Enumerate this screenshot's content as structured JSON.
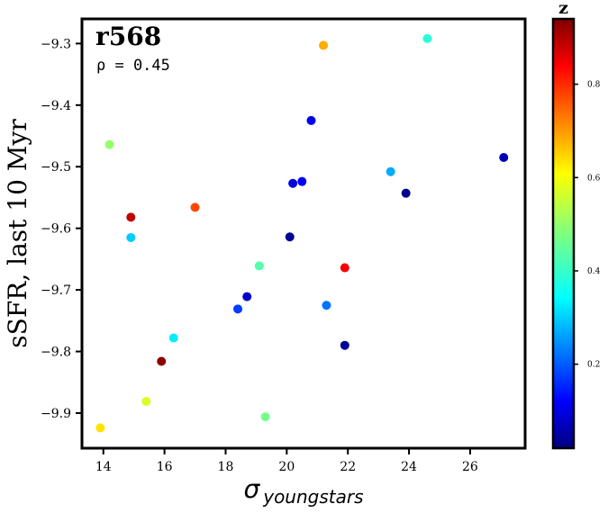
{
  "chart_data": {
    "type": "scatter",
    "title": "r568",
    "annotation": "ρ = 0.45",
    "xlabel": "σ",
    "xlabel_subscript": "youngstars",
    "ylabel": "sSFR, last 10 Myr",
    "xlim": [
      13.3,
      27.8
    ],
    "ylim": [
      -9.957,
      -9.26
    ],
    "xticks": [
      14,
      16,
      18,
      20,
      22,
      24,
      26
    ],
    "xtick_labels": [
      "14",
      "16",
      "18",
      "20",
      "22",
      "24",
      "26"
    ],
    "yticks": [
      -9.3,
      -9.4,
      -9.5,
      -9.6,
      -9.7,
      -9.8,
      -9.9
    ],
    "ytick_labels": [
      "−9.3",
      "−9.4",
      "−9.5",
      "−9.6",
      "−9.7",
      "−9.8",
      "−9.9"
    ],
    "colorbar": {
      "label": "z",
      "colormap": "jet",
      "range": [
        0.02,
        0.94
      ],
      "ticks": [
        0.2,
        0.4,
        0.6,
        0.8
      ],
      "tick_labels": [
        "0.2",
        "0.4",
        "0.6",
        "0.8"
      ]
    },
    "grid": false,
    "points": [
      {
        "x": 21.2,
        "y": -9.303,
        "z": 0.67
      },
      {
        "x": 24.6,
        "y": -9.292,
        "z": 0.4
      },
      {
        "x": 20.8,
        "y": -9.425,
        "z": 0.12
      },
      {
        "x": 14.2,
        "y": -9.464,
        "z": 0.5
      },
      {
        "x": 27.1,
        "y": -9.485,
        "z": 0.07
      },
      {
        "x": 23.4,
        "y": -9.508,
        "z": 0.29
      },
      {
        "x": 20.5,
        "y": -9.524,
        "z": 0.13
      },
      {
        "x": 20.2,
        "y": -9.527,
        "z": 0.11
      },
      {
        "x": 23.9,
        "y": -9.543,
        "z": 0.03
      },
      {
        "x": 17.0,
        "y": -9.566,
        "z": 0.76
      },
      {
        "x": 14.9,
        "y": -9.582,
        "z": 0.88
      },
      {
        "x": 14.9,
        "y": -9.615,
        "z": 0.32
      },
      {
        "x": 20.1,
        "y": -9.614,
        "z": 0.04
      },
      {
        "x": 19.1,
        "y": -9.661,
        "z": 0.44
      },
      {
        "x": 21.9,
        "y": -9.664,
        "z": 0.83
      },
      {
        "x": 18.7,
        "y": -9.711,
        "z": 0.09
      },
      {
        "x": 21.3,
        "y": -9.725,
        "z": 0.24
      },
      {
        "x": 18.4,
        "y": -9.731,
        "z": 0.19
      },
      {
        "x": 16.3,
        "y": -9.778,
        "z": 0.35
      },
      {
        "x": 21.9,
        "y": -9.79,
        "z": 0.04
      },
      {
        "x": 15.9,
        "y": -9.816,
        "z": 0.93
      },
      {
        "x": 15.4,
        "y": -9.881,
        "z": 0.56
      },
      {
        "x": 19.3,
        "y": -9.906,
        "z": 0.47
      },
      {
        "x": 13.9,
        "y": -9.924,
        "z": 0.62
      }
    ]
  }
}
